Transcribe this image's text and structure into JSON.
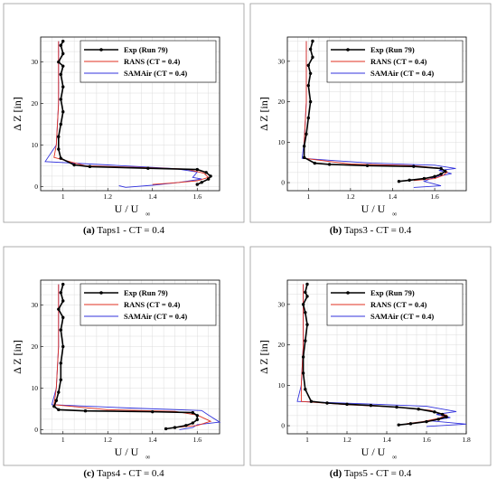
{
  "chart_data": [
    {
      "type": "line",
      "caption_label": "(a)",
      "caption_text": "Taps1 - CT = 0.4",
      "xlabel": "U / U",
      "xlabel_sub": "∞",
      "ylabel": "Δ Z [in]",
      "xlim": [
        0.9,
        1.7
      ],
      "ylim": [
        -1,
        36
      ],
      "xticks": [
        1,
        1.2,
        1.4,
        1.6
      ],
      "xtick_labels": [
        "1",
        "1.2",
        "1.4",
        "1.6"
      ],
      "yticks": [
        0,
        10,
        20,
        30
      ],
      "ytick_labels": [
        "0",
        "10",
        "20",
        "30"
      ],
      "grid": true,
      "legend_position": "top-right",
      "series": [
        {
          "name": "Exp (Run 79)",
          "color": "#000000",
          "markers": true,
          "x": [
            1.0,
            0.99,
            1.0,
            0.98,
            1.0,
            0.99,
            1.0,
            0.99,
            1.0,
            0.99,
            0.98,
            0.98,
            0.99,
            1.05,
            1.12,
            1.38,
            1.6,
            1.64,
            1.66,
            1.65,
            1.62,
            1.6
          ],
          "y": [
            35,
            34,
            32,
            30,
            29,
            27,
            24,
            21,
            18,
            15,
            12,
            9,
            6.8,
            5.2,
            4.8,
            4.4,
            4.1,
            3.4,
            2.5,
            1.8,
            1.0,
            0.5
          ]
        },
        {
          "name": "RANS (CT = 0.4)",
          "color": "#e03020",
          "markers": false,
          "x": [
            0.98,
            0.98,
            0.97,
            0.96,
            1.1,
            1.4,
            1.55,
            1.63,
            1.65,
            1.6,
            1.5,
            1.4
          ],
          "y": [
            35,
            20,
            10,
            7,
            5,
            4.5,
            4.2,
            3.2,
            2.2,
            1.4,
            0.9,
            0.5
          ]
        },
        {
          "name": "SAMAir (CT = 0.4)",
          "color": "#3333dd",
          "markers": false,
          "x": [
            0.98,
            0.98,
            0.97,
            0.92,
            1.2,
            1.5,
            1.6,
            1.58,
            1.62,
            1.52,
            1.4,
            1.28,
            1.25
          ],
          "y": [
            35,
            20,
            10,
            6,
            5.2,
            4.3,
            3.5,
            2.2,
            1.8,
            1.0,
            0.3,
            -0.2,
            0.2
          ]
        }
      ]
    },
    {
      "type": "line",
      "caption_label": "(b)",
      "caption_text": "Taps3 - CT = 0.4",
      "xlabel": "U / U",
      "xlabel_sub": "∞",
      "ylabel": "Δ Z [in]",
      "xlim": [
        0.9,
        1.75
      ],
      "ylim": [
        -2,
        36
      ],
      "xticks": [
        1,
        1.2,
        1.4,
        1.6
      ],
      "xtick_labels": [
        "1",
        "1.2",
        "1.4",
        "1.6"
      ],
      "yticks": [
        0,
        10,
        20,
        30
      ],
      "ytick_labels": [
        "0",
        "10",
        "20",
        "30"
      ],
      "grid": true,
      "legend_position": "top-right",
      "series": [
        {
          "name": "Exp (Run 79)",
          "color": "#000000",
          "markers": true,
          "x": [
            1.02,
            1.01,
            1.02,
            1.0,
            1.01,
            1.0,
            1.01,
            1.0,
            0.99,
            0.98,
            0.98,
            1.03,
            1.1,
            1.28,
            1.5,
            1.63,
            1.65,
            1.63,
            1.6,
            1.55,
            1.48,
            1.43
          ],
          "y": [
            35,
            33,
            31,
            29,
            27,
            24,
            20,
            16,
            12,
            9,
            6.2,
            4.8,
            4.5,
            4.2,
            4.0,
            3.5,
            2.8,
            2.1,
            1.5,
            1.0,
            0.6,
            0.3
          ]
        },
        {
          "name": "RANS (CT = 0.4)",
          "color": "#e03020",
          "markers": false,
          "x": [
            0.99,
            0.99,
            0.98,
            0.98,
            1.2,
            1.5,
            1.62,
            1.66,
            1.64,
            1.6,
            1.5
          ],
          "y": [
            35,
            20,
            10,
            6,
            4.6,
            4.2,
            3.6,
            2.6,
            1.8,
            1.0,
            0.5
          ]
        },
        {
          "name": "SAMAir (CT = 0.4)",
          "color": "#3333dd",
          "markers": false,
          "x": [
            0.99,
            0.99,
            0.98,
            0.97,
            1.3,
            1.6,
            1.7,
            1.62,
            1.68,
            1.6,
            1.55,
            1.63,
            1.5
          ],
          "y": [
            35,
            20,
            10,
            6,
            4.8,
            4.3,
            3.5,
            3.0,
            2.2,
            1.4,
            0.3,
            -0.8,
            -1.2
          ]
        }
      ]
    },
    {
      "type": "line",
      "caption_label": "(c)",
      "caption_text": "Taps4 - CT = 0.4",
      "xlabel": "U / U",
      "xlabel_sub": "∞",
      "ylabel": "Δ Z [in]",
      "xlim": [
        0.9,
        1.7
      ],
      "ylim": [
        -1,
        36
      ],
      "xticks": [
        1,
        1.2,
        1.4,
        1.6
      ],
      "xtick_labels": [
        "1",
        "1.2",
        "1.4",
        "1.6"
      ],
      "yticks": [
        0,
        10,
        20,
        30
      ],
      "ytick_labels": [
        "0",
        "10",
        "20",
        "30"
      ],
      "grid": true,
      "legend_position": "top-right",
      "series": [
        {
          "name": "Exp (Run 79)",
          "color": "#000000",
          "markers": true,
          "x": [
            1.0,
            0.99,
            1.0,
            0.98,
            1.0,
            0.99,
            1.0,
            0.99,
            0.99,
            0.98,
            0.97,
            0.96,
            0.98,
            1.1,
            1.4,
            1.58,
            1.6,
            1.6,
            1.58,
            1.55,
            1.5,
            1.46
          ],
          "y": [
            35,
            33,
            31,
            29,
            27,
            24,
            20,
            16,
            12,
            9,
            7,
            5.6,
            4.8,
            4.5,
            4.3,
            4.1,
            3.4,
            2.4,
            1.6,
            1.0,
            0.5,
            0.2
          ]
        },
        {
          "name": "RANS (CT = 0.4)",
          "color": "#e03020",
          "markers": false,
          "x": [
            0.98,
            0.98,
            0.97,
            0.96,
            1.2,
            1.5,
            1.6,
            1.66,
            1.6,
            1.5
          ],
          "y": [
            35,
            20,
            10,
            6,
            4.8,
            4.4,
            3.5,
            2.0,
            1.0,
            0.5
          ]
        },
        {
          "name": "SAMAir (CT = 0.4)",
          "color": "#3333dd",
          "markers": false,
          "x": [
            0.98,
            0.98,
            0.97,
            0.95,
            1.3,
            1.62,
            1.65,
            1.7,
            1.6,
            1.58,
            1.52
          ],
          "y": [
            35,
            20,
            10,
            6,
            5.2,
            4.6,
            3.5,
            1.8,
            1.2,
            0.5,
            0.0
          ]
        }
      ]
    },
    {
      "type": "line",
      "caption_label": "(d)",
      "caption_text": "Taps5 - CT = 0.4",
      "xlabel": "U / U",
      "xlabel_sub": "∞",
      "ylabel": "Δ Z [in]",
      "xlim": [
        0.9,
        1.8
      ],
      "ylim": [
        -2,
        36
      ],
      "xticks": [
        1,
        1.2,
        1.4,
        1.6,
        1.8
      ],
      "xtick_labels": [
        "1",
        "1.2",
        "1.4",
        "1.6",
        "1.8"
      ],
      "yticks": [
        0,
        10,
        20,
        30
      ],
      "ytick_labels": [
        "0",
        "10",
        "20",
        "30"
      ],
      "grid": true,
      "legend_position": "top-right",
      "series": [
        {
          "name": "Exp (Run 79)",
          "color": "#000000",
          "markers": true,
          "x": [
            1.0,
            0.99,
            1.0,
            0.98,
            0.99,
            1.0,
            0.99,
            0.98,
            0.98,
            0.99,
            1.02,
            1.1,
            1.2,
            1.32,
            1.45,
            1.56,
            1.64,
            1.68,
            1.7,
            1.66,
            1.6,
            1.52,
            1.46
          ],
          "y": [
            35,
            33,
            32,
            30,
            28,
            25,
            21,
            17,
            13,
            9,
            6.0,
            5.6,
            5.3,
            5.0,
            4.6,
            4.1,
            3.4,
            2.8,
            2.2,
            1.6,
            1.0,
            0.5,
            0.2
          ]
        },
        {
          "name": "RANS (CT = 0.4)",
          "color": "#e03020",
          "markers": false,
          "x": [
            0.98,
            0.98,
            0.97,
            0.97,
            1.2,
            1.45,
            1.62,
            1.7,
            1.66,
            1.58,
            1.5
          ],
          "y": [
            35,
            20,
            10,
            6,
            5.2,
            4.6,
            3.8,
            2.6,
            1.8,
            1.0,
            0.5
          ]
        },
        {
          "name": "SAMAir (CT = 0.4)",
          "color": "#3333dd",
          "markers": false,
          "x": [
            0.98,
            0.98,
            0.97,
            0.95,
            1.3,
            1.6,
            1.75,
            1.65,
            1.72,
            1.62,
            1.8,
            1.6
          ],
          "y": [
            35,
            20,
            10,
            6,
            5.4,
            4.8,
            3.5,
            2.8,
            2.0,
            1.2,
            0.4,
            -0.2
          ]
        }
      ]
    }
  ]
}
